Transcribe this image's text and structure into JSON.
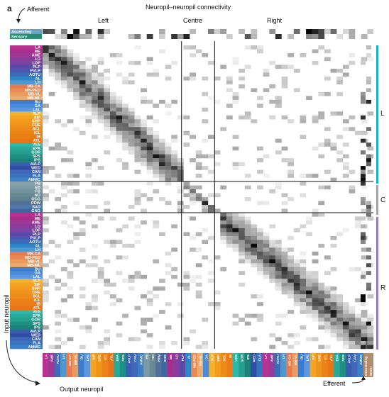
{
  "panel_label": "a",
  "title": "Neuropil–neuropil connectivity",
  "sections": {
    "left": "Left",
    "centre": "Centre",
    "right": "Right"
  },
  "annotations": {
    "afferent": "Afferent",
    "efferent": "Efferent",
    "input_neuropil": "Input neuropil",
    "output_neuropil": "Output neuropil"
  },
  "afferent_labels": [
    "Ascending",
    "Sensory"
  ],
  "efferent_labels": [
    "Descending",
    "Motor"
  ],
  "hemi_labels": [
    "L",
    "C",
    "R"
  ],
  "colors": {
    "hemi_L": "#1ab3c6",
    "hemi_C": "#a6a6a6",
    "hemi_R": "#9b79c9",
    "efferent": "#b38c6c",
    "ascending": "#6aa3c9",
    "sensory": "#2c8c74"
  },
  "chart_data": {
    "type": "heatmap",
    "title": "Neuropil–neuropil connectivity",
    "xlabel": "Output neuropil",
    "ylabel": "Input neuropil",
    "row_labels": [
      "LA",
      "ME",
      "AME",
      "LO",
      "LOP",
      "PLP",
      "PVLP",
      "AOTU",
      "AL",
      "LH",
      "MB-CA",
      "MB-PED",
      "MB-VL",
      "MB-ML",
      "BU",
      "GA",
      "LAL",
      "SLP",
      "SIP",
      "SMP",
      "CRE",
      "SCL",
      "ICL",
      "IB",
      "ATL",
      "VES",
      "EPA",
      "GOR",
      "SPS",
      "IPS",
      "AVLP",
      "WED",
      "CAN",
      "FLA",
      "AMMC",
      "PB",
      "EB",
      "FB",
      "NO",
      "OCG",
      "PRW",
      "SAD",
      "GNG",
      "LA",
      "ME",
      "AME",
      "LO",
      "LOP",
      "PLP",
      "PVLP",
      "AOTU",
      "AL",
      "LH",
      "MB-CA",
      "MB-PED",
      "MB-VL",
      "MB-ML",
      "BU",
      "GA",
      "LAL",
      "SLP",
      "SIP",
      "SMP",
      "CRE",
      "SCL",
      "ICL",
      "IB",
      "ATL",
      "VES",
      "EPA",
      "GOR",
      "SPS",
      "IPS",
      "AVLP",
      "WED",
      "CAN",
      "FLA",
      "AMMC"
    ],
    "col_labels": [
      "LA",
      "AME",
      "AOTU",
      "LH",
      "MB-CA",
      "MB-VL",
      "BU",
      "LAL",
      "SIP",
      "CRE",
      "ICL",
      "ATL",
      "EPA",
      "SPS",
      "AVLP",
      "CAN",
      "AMMC",
      "EB",
      "NO",
      "PRW",
      "GNG",
      "ME",
      "LO",
      "PLP",
      "AL",
      "MB-PED",
      "MB-ML",
      "GA",
      "SLP",
      "SMP",
      "SCL",
      "IB",
      "VES",
      "GOR",
      "IPS",
      "WED",
      "FLA",
      "LA",
      "AME",
      "AOTU",
      "LH",
      "MB-CA",
      "MB-VL",
      "BU",
      "LAL",
      "SIP",
      "CRE",
      "ICL",
      "ATL",
      "EPA",
      "SPS",
      "AVLP",
      "CAN",
      "AMMC"
    ],
    "groups": [
      {
        "name": "L",
        "rows": [
          0,
          34
        ]
      },
      {
        "name": "C",
        "rows": [
          35,
          42
        ]
      },
      {
        "name": "R",
        "rows": [
          43,
          77
        ]
      }
    ],
    "afferent_rows": [
      "Ascending",
      "Sensory"
    ],
    "efferent_cols": [
      "Descending",
      "Motor"
    ],
    "value_scale": "relative synapse weight (white = 0, black = 1)"
  }
}
